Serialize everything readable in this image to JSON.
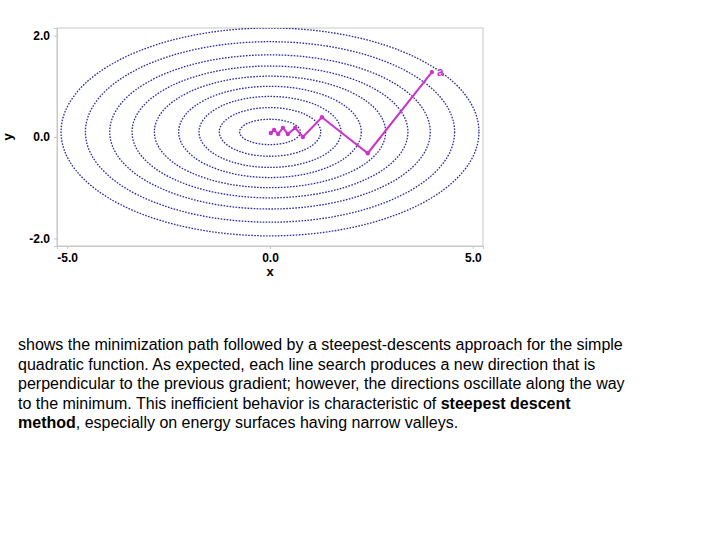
{
  "chart_data": {
    "type": "contour_path",
    "x_label": "x",
    "y_label": "y",
    "xlim": [
      -5.25,
      5.25
    ],
    "ylim": [
      -2.15,
      2.15
    ],
    "xticks": [
      {
        "value": -5,
        "label": "-5.0"
      },
      {
        "value": 0,
        "label": "0.0"
      },
      {
        "value": 5,
        "label": "5.0"
      }
    ],
    "yticks": [
      {
        "value": -2,
        "label": "-2.0"
      },
      {
        "value": 0,
        "label": "0.0"
      },
      {
        "value": 2,
        "label": "2.0"
      }
    ],
    "contours": {
      "center": [
        0,
        0.1
      ],
      "rx": [
        0.75,
        1.25,
        1.75,
        2.25,
        2.85,
        3.4,
        3.95,
        4.55,
        5.15
      ],
      "ry": [
        0.25,
        0.48,
        0.7,
        0.9,
        1.1,
        1.3,
        1.52,
        1.78,
        2.05
      ],
      "color": "#2a2aa0",
      "line_style": "dotted"
    },
    "series": [
      {
        "x": [
          3.99,
          2.41,
          1.28,
          0.81,
          0.62,
          0.44,
          0.32,
          0.2,
          0.1,
          0.02
        ],
        "values": [
          1.28,
          -0.32,
          0.39,
          0.0,
          0.18,
          0.06,
          0.18,
          0.06,
          0.14,
          0.08
        ],
        "color": "#cc33cc",
        "marker": "circle",
        "line_style": "solid"
      }
    ],
    "annotations": [
      {
        "text": "a"
      }
    ]
  },
  "caption": {
    "lines": [
      [
        {
          "text": "shows the minimization path followed by a steepest-descents approach for the simple",
          "strong": false
        }
      ],
      [
        {
          "text": "quadratic function. As expected, each line search produces a new direction that is",
          "strong": false
        }
      ],
      [
        {
          "text": "perpendicular to the previous gradient; however, the directions oscillate along the way",
          "strong": false
        }
      ],
      [
        {
          "text": "to the minimum. This inefficient behavior is characteristic of ",
          "strong": false
        },
        {
          "text": "steepest descent",
          "strong": true
        }
      ],
      [
        {
          "text": "method",
          "strong": true
        },
        {
          "text": ", especially on energy surfaces having narrow valleys.",
          "strong": false
        }
      ]
    ]
  }
}
